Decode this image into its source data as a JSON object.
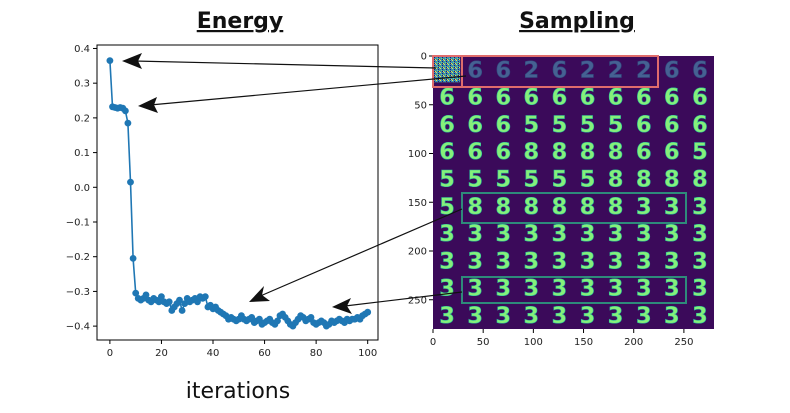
{
  "titles": {
    "left": "Energy",
    "right": "Sampling"
  },
  "xlabel": "iterations",
  "colors": {
    "series": "#1f77b4",
    "sampling_bg": "#3b0a5a",
    "digit": "#86f07a",
    "first_row_box": "#e06c6c",
    "highlight_box": "#2e8b7a",
    "arrow": "#111111"
  },
  "chart_data": [
    {
      "type": "line",
      "title": "Energy",
      "xlabel": "iterations",
      "ylabel": "",
      "xlim": [
        -5,
        104
      ],
      "ylim": [
        -0.44,
        0.41
      ],
      "xticks": [
        0,
        20,
        40,
        60,
        80,
        100
      ],
      "yticks": [
        0.4,
        0.3,
        0.2,
        0.1,
        0.0,
        -0.1,
        -0.2,
        -0.3,
        -0.4
      ],
      "ytick_labels": [
        "0.4",
        "0.3",
        "0.2",
        "0.1",
        "0.0",
        "−0.1",
        "−0.2",
        "−0.3",
        "−0.4"
      ],
      "markers": true,
      "series": [
        {
          "x": [
            0,
            1,
            2,
            3,
            4,
            5,
            6,
            7,
            8,
            9,
            10,
            11,
            12,
            13,
            14,
            15,
            16,
            17,
            18,
            19,
            20,
            21,
            22,
            23,
            24,
            25,
            26,
            27,
            28,
            29,
            30,
            31,
            32,
            33,
            34,
            35,
            36,
            37,
            38,
            39,
            40,
            41,
            42,
            43,
            44,
            45,
            46,
            47,
            48,
            49,
            50,
            51,
            52,
            53,
            54,
            55,
            56,
            57,
            58,
            59,
            60,
            61,
            62,
            63,
            64,
            65,
            66,
            67,
            68,
            69,
            70,
            71,
            72,
            73,
            74,
            75,
            76,
            77,
            78,
            79,
            80,
            81,
            82,
            83,
            84,
            85,
            86,
            87,
            88,
            89,
            90,
            91,
            92,
            93,
            94,
            95,
            96,
            97,
            98,
            99,
            100
          ],
          "values": [
            0.365,
            0.232,
            0.23,
            0.228,
            0.23,
            0.228,
            0.22,
            0.185,
            0.015,
            -0.205,
            -0.305,
            -0.32,
            -0.325,
            -0.32,
            -0.31,
            -0.325,
            -0.33,
            -0.32,
            -0.325,
            -0.33,
            -0.315,
            -0.33,
            -0.335,
            -0.33,
            -0.355,
            -0.345,
            -0.335,
            -0.325,
            -0.355,
            -0.335,
            -0.32,
            -0.33,
            -0.325,
            -0.32,
            -0.33,
            -0.315,
            -0.32,
            -0.315,
            -0.345,
            -0.34,
            -0.35,
            -0.345,
            -0.355,
            -0.36,
            -0.365,
            -0.37,
            -0.38,
            -0.375,
            -0.38,
            -0.385,
            -0.38,
            -0.37,
            -0.38,
            -0.385,
            -0.38,
            -0.375,
            -0.39,
            -0.385,
            -0.38,
            -0.395,
            -0.39,
            -0.385,
            -0.38,
            -0.39,
            -0.395,
            -0.385,
            -0.37,
            -0.365,
            -0.375,
            -0.385,
            -0.395,
            -0.4,
            -0.39,
            -0.38,
            -0.37,
            -0.375,
            -0.385,
            -0.38,
            -0.375,
            -0.39,
            -0.395,
            -0.39,
            -0.385,
            -0.39,
            -0.4,
            -0.395,
            -0.385,
            -0.39,
            -0.385,
            -0.38,
            -0.385,
            -0.39,
            -0.38,
            -0.385,
            -0.38,
            -0.38,
            -0.375,
            -0.38,
            -0.37,
            -0.365,
            -0.36
          ]
        }
      ]
    },
    {
      "type": "heatmap",
      "title": "Sampling",
      "xlim": [
        0,
        280
      ],
      "ylim": [
        0,
        280
      ],
      "xticks": [
        0,
        50,
        100,
        150,
        200,
        250
      ],
      "yticks": [
        0,
        50,
        100,
        150,
        200,
        250
      ],
      "grid_cols": 10,
      "grid_rows": 10,
      "row_digits": [
        [
          "noise",
          "6",
          "6",
          "2",
          "6",
          "2",
          "2",
          "2",
          "6",
          "6"
        ],
        [
          "6",
          "6",
          "6",
          "6",
          "6",
          "6",
          "6",
          "6",
          "6",
          "6"
        ],
        [
          "6",
          "6",
          "6",
          "5",
          "5",
          "5",
          "5",
          "6",
          "6",
          "6"
        ],
        [
          "6",
          "6",
          "6",
          "8",
          "8",
          "8",
          "8",
          "6",
          "6",
          "5"
        ],
        [
          "5",
          "5",
          "5",
          "5",
          "5",
          "5",
          "8",
          "8",
          "8",
          "8"
        ],
        [
          "5",
          "8",
          "8",
          "8",
          "8",
          "8",
          "8",
          "3",
          "3",
          "3"
        ],
        [
          "3",
          "3",
          "3",
          "3",
          "3",
          "3",
          "3",
          "3",
          "3",
          "3"
        ],
        [
          "3",
          "3",
          "3",
          "3",
          "3",
          "3",
          "3",
          "3",
          "3",
          "3"
        ],
        [
          "3",
          "3",
          "3",
          "3",
          "3",
          "3",
          "3",
          "3",
          "3",
          "3"
        ],
        [
          "3",
          "3",
          "3",
          "3",
          "3",
          "3",
          "3",
          "3",
          "3",
          "3"
        ]
      ]
    }
  ]
}
